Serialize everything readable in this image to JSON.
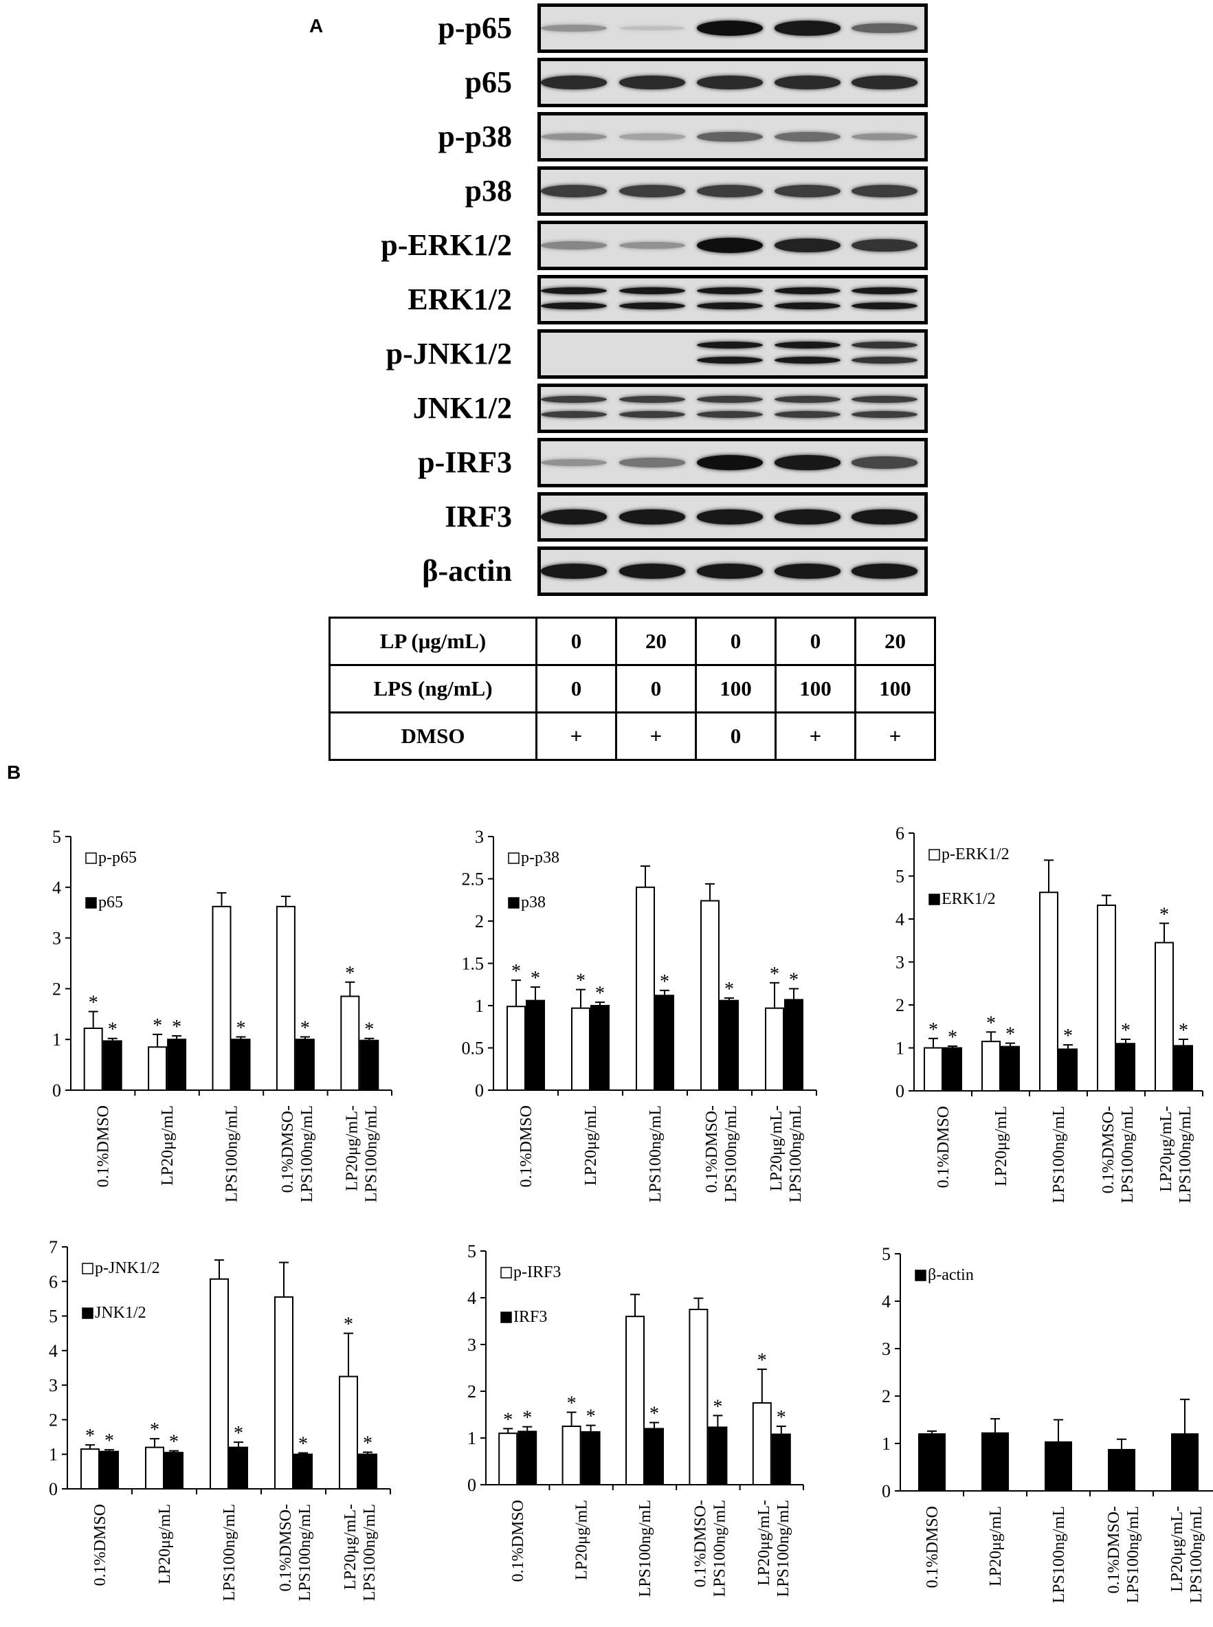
{
  "panel_a": {
    "letter": "A",
    "blots": [
      {
        "label": "p-p65",
        "intensities": [
          0.3,
          0.05,
          1.0,
          0.95,
          0.55
        ],
        "double": false
      },
      {
        "label": "p65",
        "intensities": [
          0.85,
          0.85,
          0.85,
          0.85,
          0.85
        ],
        "double": false
      },
      {
        "label": "p-p38",
        "intensities": [
          0.3,
          0.2,
          0.55,
          0.5,
          0.3
        ],
        "double": false
      },
      {
        "label": "p38",
        "intensities": [
          0.75,
          0.75,
          0.75,
          0.75,
          0.75
        ],
        "double": false
      },
      {
        "label": "p-ERK1/2",
        "intensities": [
          0.35,
          0.3,
          1.0,
          0.9,
          0.8
        ],
        "double": false
      },
      {
        "label": "ERK1/2",
        "intensities": [
          0.95,
          0.95,
          0.95,
          0.95,
          0.95
        ],
        "double": true
      },
      {
        "label": "p-JNK1/2",
        "intensities": [
          0.0,
          0.0,
          0.95,
          0.95,
          0.8
        ],
        "double": true
      },
      {
        "label": "JNK1/2",
        "intensities": [
          0.75,
          0.75,
          0.75,
          0.75,
          0.75
        ],
        "double": true
      },
      {
        "label": "p-IRF3",
        "intensities": [
          0.3,
          0.45,
          1.0,
          0.95,
          0.7
        ],
        "double": false
      },
      {
        "label": "IRF3",
        "intensities": [
          0.95,
          0.95,
          0.95,
          0.95,
          0.95
        ],
        "double": false
      },
      {
        "label": "β-actin",
        "intensities": [
          0.95,
          0.95,
          0.95,
          0.95,
          0.95
        ],
        "double": false
      }
    ],
    "table": {
      "rows": [
        {
          "label": "LP (μg/mL)",
          "values": [
            "0",
            "20",
            "0",
            "0",
            "20"
          ]
        },
        {
          "label": "LPS (ng/mL)",
          "values": [
            "0",
            "0",
            "100",
            "100",
            "100"
          ]
        },
        {
          "label": "DMSO",
          "values": [
            "+",
            "+",
            "0",
            "+",
            "+"
          ]
        }
      ]
    }
  },
  "panel_b": {
    "letter": "B"
  },
  "chart_data": [
    {
      "type": "bar",
      "categories": [
        "0.1%DMSO",
        "LP20μg/mL",
        "LPS100ng/mL",
        "0.1%DMSO-|LPS100ng/mL",
        "LP20μg/mL-|LPS100ng/mL"
      ],
      "ylim": [
        0,
        5
      ],
      "yticks": [
        0,
        1,
        2,
        3,
        4,
        5
      ],
      "legend_position": "top-left",
      "series": [
        {
          "name": "p-p65",
          "fill": "#ffffff",
          "values": [
            1.22,
            0.85,
            3.62,
            3.62,
            1.85
          ],
          "errors": [
            0.33,
            0.25,
            0.27,
            0.2,
            0.28
          ],
          "stars": [
            true,
            true,
            false,
            false,
            true
          ]
        },
        {
          "name": "p65",
          "fill": "#000000",
          "values": [
            0.97,
            1.0,
            1.0,
            1.0,
            0.98
          ],
          "errors": [
            0.05,
            0.07,
            0.05,
            0.05,
            0.04
          ],
          "stars": [
            true,
            true,
            true,
            true,
            true
          ]
        }
      ]
    },
    {
      "type": "bar",
      "categories": [
        "0.1%DMSO",
        "LP20μg/mL",
        "LPS100ng/mL",
        "0.1%DMSO-|LPS100ng/mL",
        "LP20μg/mL-|LPS100ng/mL"
      ],
      "ylim": [
        0,
        3
      ],
      "yticks": [
        0,
        0.5,
        1,
        1.5,
        2,
        2.5,
        3
      ],
      "legend_position": "top-left",
      "series": [
        {
          "name": "p-p38",
          "fill": "#ffffff",
          "values": [
            0.99,
            0.97,
            2.4,
            2.24,
            0.97
          ],
          "errors": [
            0.31,
            0.22,
            0.25,
            0.2,
            0.3
          ],
          "stars": [
            true,
            true,
            false,
            false,
            true
          ]
        },
        {
          "name": "p38",
          "fill": "#000000",
          "values": [
            1.06,
            1.0,
            1.12,
            1.06,
            1.07
          ],
          "errors": [
            0.16,
            0.04,
            0.06,
            0.03,
            0.13
          ],
          "stars": [
            true,
            true,
            true,
            true,
            true
          ]
        }
      ]
    },
    {
      "type": "bar",
      "categories": [
        "0.1%DMSO",
        "LP20μg/mL",
        "LPS100ng/mL",
        "0.1%DMSO-|LPS100ng/mL",
        "LP20μg/mL-|LPS100ng/mL"
      ],
      "ylim": [
        0,
        6
      ],
      "yticks": [
        0,
        1,
        2,
        3,
        4,
        5,
        6
      ],
      "legend_position": "top-left",
      "series": [
        {
          "name": "p-ERK1/2",
          "fill": "#ffffff",
          "values": [
            1.0,
            1.15,
            4.62,
            4.32,
            3.45
          ],
          "errors": [
            0.22,
            0.22,
            0.75,
            0.23,
            0.45
          ],
          "stars": [
            true,
            true,
            false,
            false,
            true
          ]
        },
        {
          "name": "ERK1/2",
          "fill": "#000000",
          "values": [
            1.0,
            1.03,
            0.97,
            1.1,
            1.05
          ],
          "errors": [
            0.04,
            0.08,
            0.1,
            0.1,
            0.15
          ],
          "stars": [
            true,
            true,
            true,
            true,
            true
          ]
        }
      ]
    },
    {
      "type": "bar",
      "categories": [
        "0.1%DMSO",
        "LP20μg/mL",
        "LPS100ng/mL",
        "0.1%DMSO-|LPS100ng/mL",
        "LP20μg/mL-|LPS100ng/mL"
      ],
      "ylim": [
        0,
        7
      ],
      "yticks": [
        0,
        1,
        2,
        3,
        4,
        5,
        6,
        7
      ],
      "legend_position": "top-left",
      "series": [
        {
          "name": "p-JNK1/2",
          "fill": "#ffffff",
          "values": [
            1.15,
            1.2,
            6.07,
            5.55,
            3.25
          ],
          "errors": [
            0.12,
            0.25,
            0.55,
            1.0,
            1.25
          ],
          "stars": [
            true,
            true,
            false,
            false,
            true
          ]
        },
        {
          "name": "JNK1/2",
          "fill": "#000000",
          "values": [
            1.08,
            1.05,
            1.2,
            1.0,
            1.0
          ],
          "errors": [
            0.05,
            0.05,
            0.15,
            0.04,
            0.06
          ],
          "stars": [
            true,
            true,
            true,
            true,
            true
          ]
        }
      ]
    },
    {
      "type": "bar",
      "categories": [
        "0.1%DMSO",
        "LP20μg/mL",
        "LPS100ng/mL",
        "0.1%DMSO-|LPS100ng/mL",
        "LP20μg/mL-|LPS100ng/mL"
      ],
      "ylim": [
        0,
        5
      ],
      "yticks": [
        0,
        1,
        2,
        3,
        4,
        5
      ],
      "legend_position": "top-left",
      "series": [
        {
          "name": "p-IRF3",
          "fill": "#ffffff",
          "values": [
            1.1,
            1.25,
            3.6,
            3.75,
            1.75
          ],
          "errors": [
            0.1,
            0.3,
            0.47,
            0.24,
            0.72
          ],
          "stars": [
            true,
            true,
            false,
            false,
            true
          ]
        },
        {
          "name": "IRF3",
          "fill": "#000000",
          "values": [
            1.14,
            1.13,
            1.2,
            1.23,
            1.08
          ],
          "errors": [
            0.1,
            0.14,
            0.13,
            0.25,
            0.17
          ],
          "stars": [
            true,
            true,
            true,
            true,
            true
          ]
        }
      ]
    },
    {
      "type": "bar",
      "categories": [
        "0.1%DMSO",
        "LP20μg/mL",
        "LPS100ng/mL",
        "0.1%DMSO-|LPS100ng/mL",
        "LP20μg/mL-|LPS100ng/mL"
      ],
      "ylim": [
        0,
        5
      ],
      "yticks": [
        0,
        1,
        2,
        3,
        4,
        5
      ],
      "legend_position": "top-left",
      "series": [
        {
          "name": "β-actin",
          "fill": "#000000",
          "values": [
            1.2,
            1.22,
            1.03,
            0.87,
            1.2
          ],
          "errors": [
            0.06,
            0.3,
            0.47,
            0.22,
            0.73
          ],
          "stars": [
            false,
            false,
            false,
            false,
            false
          ]
        }
      ]
    }
  ]
}
